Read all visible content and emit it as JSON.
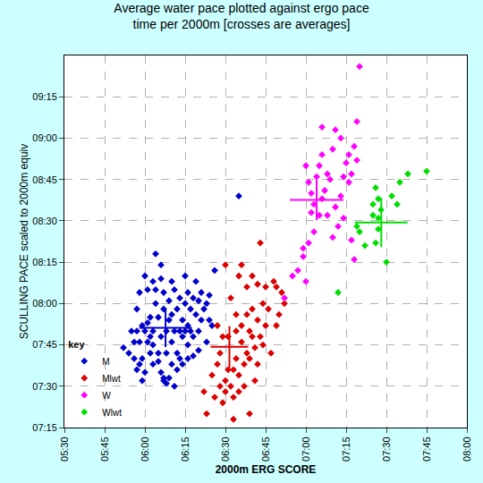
{
  "chart_data": {
    "type": "scatter",
    "title": "Average water pace plotted against ergo pace\ntime per 2000m [crosses are averages]",
    "x_label": "2000m ERG SCORE",
    "y_label": "SCULLING PACE scaled to 2000m equiv",
    "legend_title": "key",
    "legend": "bottom-left",
    "grid": true,
    "xlim": [
      330,
      480
    ],
    "xticks": [
      {
        "value": 330,
        "label": "05:30"
      },
      {
        "value": 345,
        "label": "05:45"
      },
      {
        "value": 360,
        "label": "06:00"
      },
      {
        "value": 375,
        "label": "06:15"
      },
      {
        "value": 390,
        "label": "06:30"
      },
      {
        "value": 405,
        "label": "06:45"
      },
      {
        "value": 420,
        "label": "07:00"
      },
      {
        "value": 435,
        "label": "07:15"
      },
      {
        "value": 450,
        "label": "07:30"
      },
      {
        "value": 465,
        "label": "07:45"
      },
      {
        "value": 480,
        "label": "08:00"
      }
    ],
    "ylim": [
      435,
      570
    ],
    "yticks": [
      {
        "value": 435,
        "label": "07:15"
      },
      {
        "value": 450,
        "label": "07:30"
      },
      {
        "value": 465,
        "label": "07:45"
      },
      {
        "value": 480,
        "label": "08:00"
      },
      {
        "value": 495,
        "label": "08:15"
      },
      {
        "value": 510,
        "label": "08:30"
      },
      {
        "value": 525,
        "label": "08:45"
      },
      {
        "value": 540,
        "label": "09:00"
      },
      {
        "value": 555,
        "label": "09:15"
      }
    ],
    "series": [
      {
        "name": "M",
        "color": "#0000cc",
        "marker": "diamond",
        "x": [
          352,
          356,
          357,
          358,
          359,
          360,
          361,
          359,
          360,
          362,
          362,
          363,
          363,
          364,
          364,
          365,
          365,
          366,
          366,
          367,
          367,
          367,
          368,
          368,
          369,
          369,
          370,
          370,
          371,
          371,
          372,
          372,
          373,
          373,
          374,
          374,
          375,
          375,
          376,
          376,
          377,
          377,
          378,
          378,
          379,
          380,
          380,
          381,
          382,
          383,
          384,
          385,
          360,
          361,
          363,
          366,
          358,
          357,
          355,
          354,
          356,
          364,
          366,
          370,
          371,
          372,
          374,
          376,
          383,
          384,
          386,
          395,
          369,
          368,
          365,
          362,
          361,
          358,
          378,
          380,
          381,
          379,
          363,
          370,
          373,
          367,
          375,
          376,
          359,
          357
        ],
        "y": [
          464,
          460,
          456,
          458,
          460,
          470,
          466,
          452,
          455,
          475,
          462,
          458,
          470,
          480,
          485,
          475,
          462,
          468,
          455,
          478,
          452,
          453,
          470,
          462,
          481,
          474,
          466,
          458,
          485,
          470,
          478,
          462,
          482,
          470,
          474,
          468,
          490,
          480,
          472,
          465,
          478,
          470,
          482,
          468,
          476,
          481,
          470,
          474,
          478,
          480,
          474,
          472,
          490,
          485,
          488,
          489,
          484,
          478,
          470,
          462,
          466,
          498,
          494,
          488,
          450,
          456,
          458,
          460,
          466,
          483,
          492,
          519,
          453,
          451,
          459,
          468,
          473,
          466,
          461,
          463,
          484,
          488,
          465,
          476,
          460,
          484,
          470,
          484,
          472,
          470
        ],
        "average": {
          "x": 367.7,
          "y": 471.2,
          "x_error": 9.8,
          "y_error": 7.0
        }
      },
      {
        "name": "Mlwt",
        "color": "#dd0000",
        "marker": "diamond",
        "x": [
          382,
          383,
          385,
          386,
          387,
          388,
          388,
          389,
          390,
          390,
          391,
          391,
          392,
          393,
          393,
          394,
          394,
          395,
          395,
          396,
          396,
          397,
          397,
          398,
          398,
          399,
          399,
          400,
          400,
          401,
          402,
          402,
          403,
          404,
          405,
          405,
          406,
          407,
          408,
          409,
          410,
          411,
          398,
          395,
          392,
          390,
          396,
          400,
          403,
          409,
          412,
          387,
          393,
          401,
          399,
          402,
          394,
          389,
          404
        ],
        "y": [
          448,
          440,
          454,
          446,
          458,
          450,
          462,
          444,
          452,
          448,
          456,
          468,
          450,
          438,
          446,
          460,
          470,
          448,
          454,
          466,
          472,
          458,
          450,
          476,
          462,
          470,
          440,
          468,
          478,
          464,
          474,
          458,
          468,
          480,
          472,
          486,
          478,
          462,
          488,
          472,
          476,
          484,
          486,
          490,
          482,
          494,
          494,
          490,
          502,
          486,
          480,
          472,
          456,
          452,
          460,
          487,
          476,
          468,
          465
        ],
        "average": {
          "x": 391.5,
          "y": 464.3,
          "x_error": 7.0,
          "y_error": 7.5
        }
      },
      {
        "name": "W",
        "color": "#ff00ff",
        "marker": "diamond",
        "x": [
          412,
          415,
          417,
          419,
          420,
          421,
          422,
          423,
          423,
          424,
          425,
          426,
          427,
          428,
          429,
          430,
          431,
          432,
          433,
          434,
          435,
          436,
          437,
          438,
          439,
          440,
          420,
          421,
          425,
          428,
          426,
          430,
          433,
          436,
          437,
          438,
          431,
          426,
          419,
          422,
          434,
          439
        ],
        "y": [
          482,
          490,
          492,
          497,
          488,
          502,
          520,
          516,
          506,
          526,
          530,
          534,
          521,
          512,
          525,
          536,
          515,
          508,
          519,
          526,
          531,
          524,
          503,
          496,
          546,
          566,
          530,
          524,
          512,
          527,
          518,
          504,
          540,
          534,
          527,
          537,
          543,
          544,
          500,
          513,
          511,
          532
        ],
        "average": {
          "x": 424.0,
          "y": 517.6,
          "x_error": 10.0,
          "y_error": 7.4
        }
      },
      {
        "name": "Wlwt",
        "color": "#00dd00",
        "marker": "diamond",
        "x": [
          432,
          439,
          440,
          442,
          445,
          445,
          446,
          447,
          447,
          448,
          450,
          452,
          455,
          458,
          465,
          447,
          454,
          446
        ],
        "y": [
          484,
          508,
          506,
          501,
          516,
          512,
          502,
          518,
          507,
          514,
          495,
          519,
          524,
          527,
          528,
          511,
          516,
          522
        ],
        "average": {
          "x": 448.1,
          "y": 509.4,
          "x_error": 9.8,
          "y_error": 8.9
        }
      }
    ]
  }
}
